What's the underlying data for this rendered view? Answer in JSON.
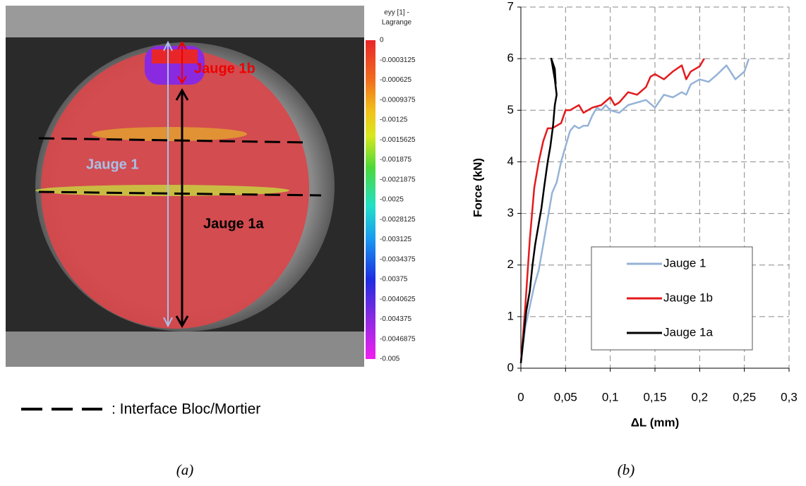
{
  "panel_a": {
    "colorbar_title": [
      "eyy [1] -",
      "Lagrange"
    ],
    "colorbar_labels": [
      "0",
      "-0.0003125",
      "-0.000625",
      "-0.0009375",
      "-0.00125",
      "-0.0015625",
      "-0.001875",
      "-0.0021875",
      "-0.0025",
      "-0.0028125",
      "-0.003125",
      "-0.0034375",
      "-0.00375",
      "-0.0040625",
      "-0.004375",
      "-0.0046875",
      "-0.005"
    ],
    "annotations": [
      "Jauge 1b",
      "Jauge 1",
      "Jauge 1a"
    ],
    "legend": ": Interface Bloc/Mortier"
  },
  "captions": [
    "(a)",
    "(b)"
  ],
  "chart_data": {
    "type": "line",
    "xlabel": "ΔL (mm)",
    "ylabel": "Force (kN)",
    "xlim": [
      0,
      0.3
    ],
    "ylim": [
      0,
      7
    ],
    "xticks": [
      0,
      {
        "value": 0.05,
        "label": "0,05"
      },
      {
        "value": 0.1,
        "label": "0,1"
      },
      {
        "value": 0.15,
        "label": "0,15"
      },
      {
        "value": 0.2,
        "label": "0,2"
      },
      {
        "value": 0.25,
        "label": "0,25"
      },
      {
        "value": 0.3,
        "label": "0,3"
      }
    ],
    "yticks": [
      0,
      1,
      2,
      3,
      4,
      5,
      6,
      7
    ],
    "grid": true,
    "series": [
      {
        "name": "Jauge 1",
        "color": "#95b3d7",
        "x": [
          0,
          0.005,
          0.01,
          0.015,
          0.02,
          0.025,
          0.03,
          0.035,
          0.04,
          0.045,
          0.05,
          0.055,
          0.06,
          0.065,
          0.07,
          0.075,
          0.08,
          0.085,
          0.09,
          0.095,
          0.1,
          0.11,
          0.12,
          0.13,
          0.14,
          0.15,
          0.16,
          0.17,
          0.18,
          0.185,
          0.19,
          0.2,
          0.21,
          0.22,
          0.23,
          0.24,
          0.25,
          0.255
        ],
        "values": [
          0.1,
          0.8,
          1.2,
          1.6,
          1.9,
          2.4,
          2.9,
          3.4,
          3.6,
          4.0,
          4.3,
          4.6,
          4.7,
          4.65,
          4.7,
          4.7,
          4.9,
          5.05,
          5.0,
          5.1,
          5.0,
          4.95,
          5.1,
          5.15,
          5.2,
          5.05,
          5.3,
          5.25,
          5.35,
          5.3,
          5.5,
          5.6,
          5.55,
          5.7,
          5.87,
          5.6,
          5.75,
          6.0
        ]
      },
      {
        "name": "Jauge 1b",
        "color": "#e41a1c",
        "x": [
          0,
          0.005,
          0.01,
          0.015,
          0.02,
          0.025,
          0.03,
          0.035,
          0.04,
          0.045,
          0.05,
          0.055,
          0.06,
          0.065,
          0.07,
          0.08,
          0.09,
          0.1,
          0.105,
          0.11,
          0.12,
          0.13,
          0.14,
          0.145,
          0.15,
          0.16,
          0.17,
          0.18,
          0.185,
          0.19,
          0.2,
          0.205
        ],
        "values": [
          0.1,
          1.2,
          2.5,
          3.5,
          4.0,
          4.4,
          4.65,
          4.65,
          4.7,
          4.75,
          5.0,
          5.0,
          5.05,
          5.1,
          4.95,
          5.05,
          5.1,
          5.25,
          5.1,
          5.15,
          5.35,
          5.3,
          5.45,
          5.65,
          5.7,
          5.6,
          5.75,
          5.87,
          5.6,
          5.75,
          5.85,
          6.0
        ]
      },
      {
        "name": "Jauge 1a",
        "color": "#000000",
        "x": [
          0,
          0.003,
          0.006,
          0.01,
          0.013,
          0.016,
          0.02,
          0.023,
          0.026,
          0.03,
          0.033,
          0.036,
          0.038,
          0.04,
          0.038,
          0.036,
          0.034,
          0.038,
          0.039
        ],
        "values": [
          0.1,
          0.6,
          1.1,
          1.5,
          2.0,
          2.4,
          2.8,
          3.1,
          3.5,
          4.0,
          4.3,
          4.7,
          5.1,
          5.3,
          5.6,
          5.8,
          6.0,
          5.8,
          5.5
        ]
      }
    ]
  }
}
